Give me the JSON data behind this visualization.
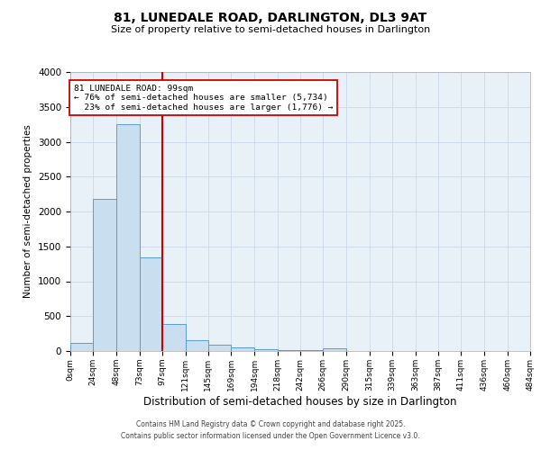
{
  "title_line1": "81, LUNEDALE ROAD, DARLINGTON, DL3 9AT",
  "title_line2": "Size of property relative to semi-detached houses in Darlington",
  "xlabel": "Distribution of semi-detached houses by size in Darlington",
  "ylabel": "Number of semi-detached properties",
  "footnote1": "Contains HM Land Registry data © Crown copyright and database right 2025.",
  "footnote2": "Contains public sector information licensed under the Open Government Licence v3.0.",
  "property_label": "81 LUNEDALE ROAD: 99sqm",
  "pct_smaller": 76,
  "pct_larger": 23,
  "n_smaller": "5,734",
  "n_larger": "1,776",
  "bin_edges": [
    0,
    24,
    48,
    73,
    97,
    121,
    145,
    169,
    194,
    218,
    242,
    266,
    290,
    315,
    339,
    363,
    387,
    411,
    436,
    460,
    484
  ],
  "bin_counts": [
    110,
    2180,
    3250,
    1340,
    390,
    160,
    90,
    55,
    30,
    15,
    8,
    40,
    0,
    0,
    0,
    0,
    0,
    0,
    0,
    0
  ],
  "bar_facecolor": "#c9dff0",
  "bar_edgecolor": "#5b9bd5",
  "vline_color": "#cc0000",
  "vline_x": 97,
  "annotation_box_color": "#cc0000",
  "grid_color": "#c8d8e8",
  "background_color": "#e8f0f8",
  "ylim": [
    0,
    4000
  ],
  "yticks": [
    0,
    500,
    1000,
    1500,
    2000,
    2500,
    3000,
    3500,
    4000
  ]
}
